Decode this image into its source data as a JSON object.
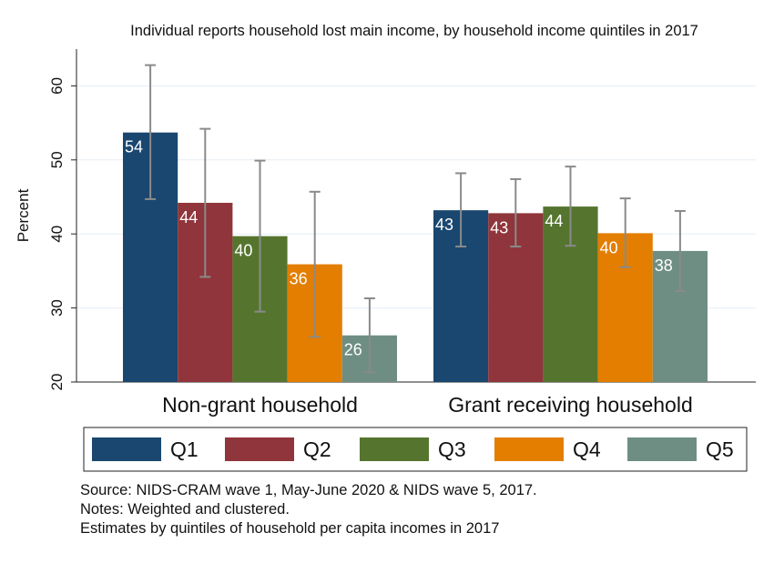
{
  "chart_data": {
    "type": "bar",
    "title": "Individual reports household lost main income, by household income quintiles in 2017",
    "ylabel": "Percent",
    "xlabel": "",
    "ylim": [
      20,
      65
    ],
    "yticks": [
      "20",
      "30",
      "40",
      "50",
      "60"
    ],
    "grid": true,
    "legend_position": "bottom",
    "categories": [
      "Non-grant household",
      "Grant receiving household"
    ],
    "series": [
      {
        "name": "Q1",
        "color": "#1a476f",
        "values": [
          53.7,
          43.2
        ],
        "labels": [
          "54",
          "43"
        ],
        "ci_low": [
          44.7,
          38.3
        ],
        "ci_high": [
          62.8,
          48.2
        ]
      },
      {
        "name": "Q2",
        "color": "#90353b",
        "values": [
          44.2,
          42.8
        ],
        "labels": [
          "44",
          "43"
        ],
        "ci_low": [
          34.2,
          38.3
        ],
        "ci_high": [
          54.2,
          47.4
        ]
      },
      {
        "name": "Q3",
        "color": "#55752f",
        "values": [
          39.7,
          43.7
        ],
        "labels": [
          "40",
          "44"
        ],
        "ci_low": [
          29.5,
          38.4
        ],
        "ci_high": [
          49.9,
          49.1
        ]
      },
      {
        "name": "Q4",
        "color": "#e37e00",
        "values": [
          35.9,
          40.1
        ],
        "labels": [
          "36",
          "40"
        ],
        "ci_low": [
          26.1,
          35.5
        ],
        "ci_high": [
          45.7,
          44.8
        ]
      },
      {
        "name": "Q5",
        "color": "#6e8e84",
        "values": [
          26.3,
          37.7
        ],
        "labels": [
          "26",
          "38"
        ],
        "ci_low": [
          21.3,
          32.3
        ],
        "ci_high": [
          31.3,
          43.1
        ]
      }
    ]
  },
  "notes": {
    "source": "Source: NIDS-CRAM wave 1, May-June 2020 & NIDS wave 5, 2017.",
    "weighting": "Notes: Weighted and clustered.",
    "estimates": "Estimates by quintiles of household per capita incomes in 2017"
  }
}
